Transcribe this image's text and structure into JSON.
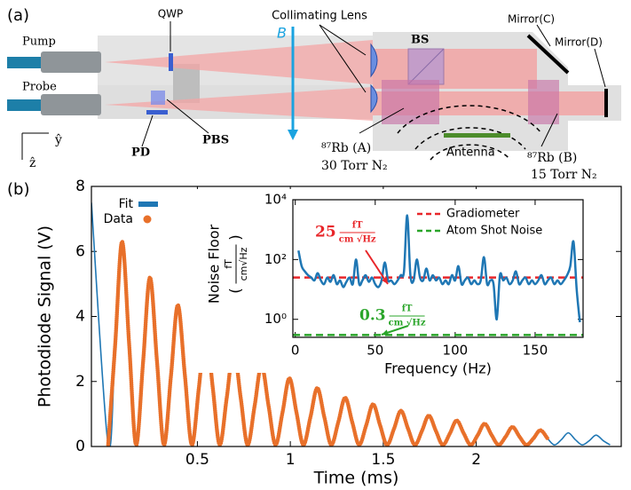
{
  "panel_a": {
    "label": "(a)",
    "pump": "Pump",
    "probe": "Probe",
    "qwp": "QWP",
    "lens": "Collimating Lens",
    "bs": "BS",
    "mirror_c": "Mirror(C)",
    "mirror_d": "Mirror(D)",
    "field": "B",
    "pd": "PD",
    "pbs": "PBS",
    "y_axis": "ŷ",
    "z_axis": "ẑ",
    "cell_a": "⁸⁷Rb (A)",
    "cell_a_gas": "30 Torr N₂",
    "antenna": "Antenna",
    "cell_b": "⁸⁷Rb (B)",
    "cell_b_gas": "15 Torr N₂"
  },
  "panel_b": {
    "label": "(b)"
  },
  "chart_data": [
    {
      "type": "line",
      "x_label": "Time (ms)",
      "y_label": "Photodiode Signal (V)",
      "legend": "upper left",
      "xlim": [
        -0.07,
        2.78
      ],
      "xticks": [
        0.5,
        1,
        1.5,
        2
      ],
      "ylim": [
        0,
        8
      ],
      "yticks": [
        0,
        2,
        4,
        6,
        8
      ],
      "x": [
        -0.07,
        0.02,
        0.058,
        0.095,
        0.133,
        0.17,
        0.208,
        0.245,
        0.283,
        0.32,
        0.358,
        0.395,
        0.433,
        0.47,
        0.508,
        0.545,
        0.583,
        0.62,
        0.658,
        0.695,
        0.733,
        0.77,
        0.808,
        0.845,
        0.883,
        0.92,
        0.958,
        0.995,
        1.033,
        1.07,
        1.108,
        1.145,
        1.183,
        1.22,
        1.258,
        1.295,
        1.333,
        1.37,
        1.408,
        1.445,
        1.483,
        1.52,
        1.558,
        1.595,
        1.633,
        1.67,
        1.708,
        1.745,
        1.783,
        1.82,
        1.858,
        1.895,
        1.933,
        1.97,
        2.008,
        2.045,
        2.083,
        2.12,
        2.158,
        2.195,
        2.233,
        2.27,
        2.308,
        2.345,
        2.383,
        2.42,
        2.458,
        2.495,
        2.533,
        2.57,
        2.608,
        2.645,
        2.683,
        2.72
      ],
      "series": [
        {
          "name": "Fit",
          "color": "#1f77b4",
          "marker": "line",
          "values": [
            7.5,
            0.05,
            3.15,
            6.3,
            3.15,
            0.05,
            2.6,
            5.2,
            2.6,
            0.05,
            2.18,
            4.35,
            2.18,
            0.05,
            1.8,
            3.6,
            1.8,
            0.05,
            1.5,
            3.0,
            1.5,
            0.05,
            1.25,
            2.5,
            1.25,
            0.05,
            1.05,
            2.1,
            1.05,
            0.05,
            0.9,
            1.8,
            0.9,
            0.05,
            0.75,
            1.5,
            0.75,
            0.05,
            0.65,
            1.3,
            0.65,
            0.05,
            0.55,
            1.1,
            0.55,
            0.05,
            0.48,
            0.95,
            0.48,
            0.05,
            0.4,
            0.8,
            0.4,
            0.05,
            0.35,
            0.7,
            0.35,
            0.05,
            0.3,
            0.6,
            0.3,
            0.05,
            0.25,
            0.5,
            0.25,
            0.05,
            0.21,
            0.42,
            0.21,
            0.05,
            0.18,
            0.35,
            0.18,
            0.05
          ]
        },
        {
          "name": "Data",
          "color": "#e8702a",
          "marker": "circle",
          "values": [
            null,
            0.05,
            3.15,
            6.3,
            3.15,
            0.05,
            2.6,
            5.2,
            2.6,
            0.05,
            2.18,
            4.35,
            2.18,
            0.05,
            1.8,
            3.6,
            1.8,
            0.05,
            1.5,
            3.0,
            1.5,
            0.05,
            1.25,
            2.5,
            1.25,
            0.05,
            1.05,
            2.1,
            1.05,
            0.05,
            0.9,
            1.8,
            0.9,
            0.05,
            0.75,
            1.5,
            0.75,
            0.05,
            0.65,
            1.3,
            0.65,
            0.05,
            0.55,
            1.1,
            0.55,
            0.05,
            0.48,
            0.95,
            0.48,
            0.05,
            0.4,
            0.8,
            0.4,
            0.05,
            0.35,
            0.7,
            0.35,
            0.05,
            0.3,
            0.6,
            0.3,
            0.05,
            0.25,
            0.5,
            0.25,
            null,
            null,
            null,
            null,
            null,
            null,
            null,
            null,
            null
          ]
        }
      ]
    },
    {
      "type": "line",
      "x_label": "Frequency (Hz)",
      "y_label": "Noise Floor",
      "y_unit": {
        "open": "(",
        "numerator": "fT",
        "denominator": "cm√Hz",
        "close": ")"
      },
      "ylog": true,
      "legend": "upper right",
      "xlim": [
        -1.5,
        180
      ],
      "xticks": [
        0,
        50,
        100,
        150
      ],
      "ylim": [
        0.25,
        10000
      ],
      "yticks": [
        {
          "value": 1,
          "label": "10⁰"
        },
        {
          "value": 100,
          "label": "10²"
        },
        {
          "value": 10000,
          "label": "10⁴"
        }
      ],
      "x": [
        2,
        4,
        6,
        8,
        10,
        12,
        14,
        16,
        18,
        20,
        22,
        24,
        26,
        28,
        30,
        32,
        34,
        36,
        38,
        40,
        42,
        44,
        46,
        48,
        50,
        52,
        54,
        56,
        58,
        60,
        62,
        64,
        66,
        68,
        70,
        72,
        74,
        76,
        78,
        80,
        82,
        84,
        86,
        88,
        90,
        92,
        94,
        96,
        98,
        100,
        102,
        104,
        106,
        108,
        110,
        112,
        114,
        116,
        118,
        120,
        122,
        124,
        126,
        128,
        130,
        132,
        134,
        136,
        138,
        140,
        142,
        144,
        146,
        148,
        150,
        152,
        154,
        156,
        158,
        160,
        162,
        164,
        166,
        168,
        170,
        172,
        174,
        176,
        178
      ],
      "series": [
        {
          "color": "#1f77b4",
          "values": [
            200,
            60,
            40,
            30,
            25,
            20,
            35,
            20,
            15,
            25,
            18,
            30,
            15,
            20,
            12,
            18,
            25,
            15,
            100,
            15,
            20,
            30,
            18,
            25,
            15,
            12,
            20,
            80,
            20,
            20,
            15,
            20,
            30,
            40,
            3000,
            30,
            20,
            100,
            25,
            20,
            50,
            20,
            30,
            20,
            25,
            15,
            20,
            15,
            30,
            20,
            60,
            15,
            20,
            25,
            15,
            20,
            15,
            20,
            120,
            15,
            20,
            15,
            1,
            30,
            20,
            25,
            15,
            20,
            40,
            15,
            20,
            25,
            15,
            20,
            15,
            20,
            30,
            15,
            20,
            25,
            15,
            20,
            15,
            20,
            30,
            60,
            400,
            10,
            0.8
          ]
        }
      ],
      "annotation_unit": {
        "numerator": "fT",
        "denominator": "cm √Hz"
      },
      "reference_lines": [
        {
          "name": "Gradiometer",
          "value": 25,
          "color": "#e8262a"
        },
        {
          "name": "Atom Shot Noise",
          "value": 0.3,
          "color": "#2aa52a"
        }
      ]
    }
  ]
}
